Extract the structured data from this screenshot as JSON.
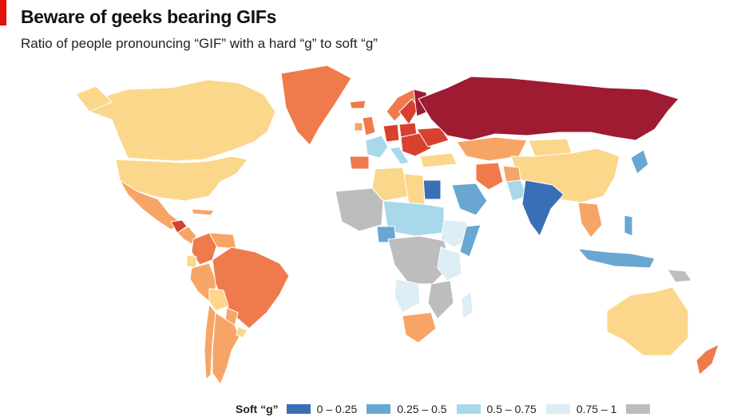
{
  "header": {
    "title": "Beware of geeks bearing GIFs",
    "subtitle": "Ratio of people pronouncing “GIF” with a hard “g” to soft “g”"
  },
  "colors": {
    "ocean": "#ffffff",
    "border": "#9fb6c8",
    "accent_bar": "#e3120b",
    "no_data": "#bdbdbd"
  },
  "legend": {
    "title": "Soft “g”",
    "items": [
      {
        "label": "0 – 0.25",
        "color": "#3a6fb6"
      },
      {
        "label": "0.25 – 0.5",
        "color": "#6aa6d2"
      },
      {
        "label": "0.5 – 0.75",
        "color": "#a8d8ea"
      },
      {
        "label": "0.75 – 1",
        "color": "#dcedf5"
      },
      {
        "label": "",
        "color": "#bdbdbd"
      }
    ]
  },
  "categories": {
    "soft_0_025": "#3a6fb6",
    "soft_025_05": "#6aa6d2",
    "soft_05_075": "#a8d8ea",
    "soft_075_1": "#dcedf5",
    "hard_1_2": "#fbd78b",
    "hard_2_4": "#f7a567",
    "hard_4_6": "#ef7b4c",
    "hard_6_8": "#d8412f",
    "hard_8_plus": "#9e1b32",
    "no_data": "#bdbdbd"
  }
}
